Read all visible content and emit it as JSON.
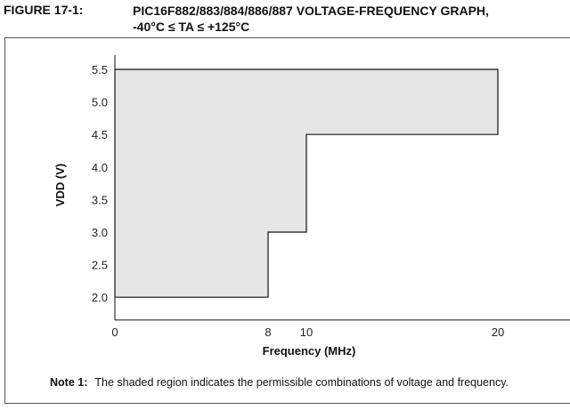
{
  "figure_label": "FIGURE 17-1:",
  "title_line1": "PIC16F882/883/884/886/887 VOLTAGE-FREQUENCY GRAPH,",
  "title_line2": "-40°C ≤ TA ≤ +125°C",
  "note_label": "Note 1:",
  "note_text": "The shaded region indicates the permissible combinations of voltage and frequency.",
  "chart_data": {
    "type": "area",
    "title": "PIC16F882/883/884/886/887 VOLTAGE-FREQUENCY GRAPH, -40°C ≤ TA ≤ +125°C",
    "xlabel": "Frequency (MHz)",
    "ylabel": "VDD (V)",
    "xlim": [
      0,
      21
    ],
    "ylim": [
      1.65,
      5.72
    ],
    "xticks": [
      0,
      8,
      10,
      20
    ],
    "yticks": [
      2.0,
      2.5,
      3.0,
      3.5,
      4.0,
      4.5,
      5.0,
      5.5
    ],
    "region": [
      [
        0,
        2.0
      ],
      [
        8,
        2.0
      ],
      [
        8,
        3.0
      ],
      [
        10,
        3.0
      ],
      [
        10,
        4.5
      ],
      [
        20,
        4.5
      ],
      [
        20,
        5.5
      ],
      [
        0,
        5.5
      ]
    ],
    "fill_color": "#e6e6e6",
    "grid": false
  }
}
